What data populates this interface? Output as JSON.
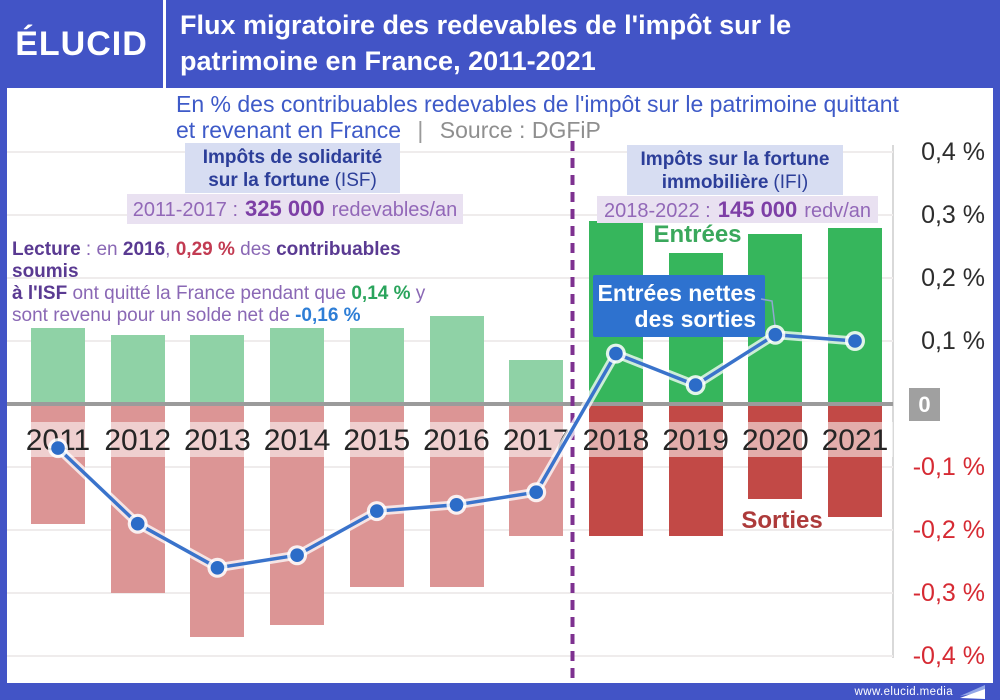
{
  "header": {
    "logo": "ÉLUCID",
    "title_line1": "Flux migratoire des redevables de l'impôt sur le",
    "title_line2": "patrimoine en France, 2011-2021"
  },
  "subtitle": {
    "line1": "En % des contribuables redevables de l'impôt sur le patrimoine quittant",
    "line2": "et revenant en France",
    "separator": "|",
    "source": "Source : DGFiP"
  },
  "annotations": {
    "isf": {
      "title_bold1": "Impôts de solidarité",
      "title_bold2": "sur la fortune",
      "title_suffix": "(ISF)",
      "period_prefix": "2011-2017 :",
      "period_number": "325 000",
      "period_suffix": "redevables/an"
    },
    "ifi": {
      "title_bold1": "Impôts sur la fortune",
      "title_bold2": "immobilière",
      "title_suffix": "(IFI)",
      "period_prefix": "2018-2022 :",
      "period_number": "145 000",
      "period_suffix": "redv/an"
    },
    "lecture_segments": [
      {
        "text": "Lecture",
        "style": "bold-purple"
      },
      {
        "text": " : en ",
        "style": "purple"
      },
      {
        "text": "2016",
        "style": "bold-purple"
      },
      {
        "text": ", ",
        "style": "purple"
      },
      {
        "text": "0,29 %",
        "style": "bold-red"
      },
      {
        "text": " des ",
        "style": "purple"
      },
      {
        "text": "contribuables soumis",
        "style": "bold-purple"
      },
      {
        "text": "",
        "style": "break"
      },
      {
        "text": "à l'ISF",
        "style": "bold-purple"
      },
      {
        "text": " ont quitté la France pendant que ",
        "style": "purple"
      },
      {
        "text": "0,14 %",
        "style": "bold-green"
      },
      {
        "text": " y",
        "style": "purple"
      },
      {
        "text": "",
        "style": "break"
      },
      {
        "text": "sont revenu pour un solde net de ",
        "style": "purple"
      },
      {
        "text": "-0,16 %",
        "style": "bold-blue"
      }
    ],
    "entrees_label": "Entrées",
    "sorties_label": "Sorties",
    "net_label_line1": "Entrées nettes",
    "net_label_line2": "des sorties"
  },
  "chart_data": {
    "type": "bar+line",
    "categories": [
      "2011",
      "2012",
      "2013",
      "2014",
      "2015",
      "2016",
      "2017",
      "2018",
      "2019",
      "2020",
      "2021"
    ],
    "series": [
      {
        "name": "Entrées",
        "type": "bar",
        "values": [
          0.12,
          0.11,
          0.11,
          0.12,
          0.12,
          0.14,
          0.07,
          0.29,
          0.24,
          0.27,
          0.28
        ]
      },
      {
        "name": "Sorties",
        "type": "bar",
        "values": [
          -0.19,
          -0.3,
          -0.37,
          -0.35,
          -0.29,
          -0.29,
          -0.21,
          -0.21,
          -0.21,
          -0.15,
          -0.18
        ]
      },
      {
        "name": "Entrées nettes des sorties",
        "type": "line",
        "values": [
          -0.07,
          -0.19,
          -0.26,
          -0.24,
          -0.17,
          -0.16,
          -0.14,
          0.08,
          0.03,
          0.11,
          0.1
        ]
      }
    ],
    "bar_period_styles": [
      "light",
      "light",
      "light",
      "light",
      "light",
      "light",
      "light",
      "dark",
      "dark",
      "dark",
      "dark"
    ],
    "period_divider_between": [
      "2017",
      "2018"
    ],
    "ylim": [
      -0.4,
      0.4
    ],
    "grid": true,
    "yticks": [
      {
        "label": "0,4 %",
        "value": 0.4
      },
      {
        "label": "0,3 %",
        "value": 0.3
      },
      {
        "label": "0,2 %",
        "value": 0.2
      },
      {
        "label": "0,1 %",
        "value": 0.1
      },
      {
        "label": "0",
        "value": 0
      },
      {
        "label": "-0,1 %",
        "value": -0.1
      },
      {
        "label": "-0,2 %",
        "value": -0.2
      },
      {
        "label": "-0,3 %",
        "value": -0.3
      },
      {
        "label": "-0,4 %",
        "value": -0.4
      }
    ],
    "colors": {
      "entrees_light": "#8fd2a6",
      "entrees_dark": "#36b65c",
      "sorties_light": "#dc9595",
      "sorties_dark": "#c24946",
      "net_line": "#3a73cb",
      "net_point": "#2c6cc8",
      "divider": "#7e3190",
      "accent_blue": "#4254c6"
    }
  },
  "footer": {
    "url": "www.elucid.media"
  }
}
